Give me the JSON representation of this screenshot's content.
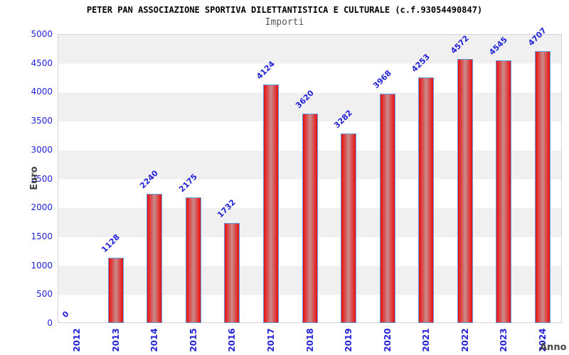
{
  "chart_data": {
    "type": "bar",
    "title": "PETER PAN ASSOCIAZIONE SPORTIVA DILETTANTISTICA E CULTURALE (c.f.93054490847)",
    "subtitle": "Importi",
    "xlabel": "Anno",
    "ylabel": "Euro",
    "categories": [
      "2012",
      "2013",
      "2014",
      "2015",
      "2016",
      "2017",
      "2018",
      "2019",
      "2020",
      "2021",
      "2022",
      "2023",
      "2024"
    ],
    "values": [
      0,
      1128,
      2240,
      2175,
      1732,
      4124,
      3620,
      3282,
      3968,
      4253,
      4572,
      4545,
      4707
    ],
    "ylim": [
      0,
      5000
    ],
    "ytick_step": 500,
    "yticks": [
      "0",
      "500",
      "1000",
      "1500",
      "2000",
      "2500",
      "3000",
      "3500",
      "4000",
      "4500",
      "5000"
    ],
    "legend": "none",
    "grid": "horizontal-bands-500",
    "value_labels_rotation_deg": -45,
    "xtick_rotation_deg": -90,
    "colors": {
      "bar_fill_edge": "#ea0f0f",
      "bar_fill_mid": "#c98c8c",
      "bar_border": "#5f9ee0",
      "axis_text_blue": "#2323d7",
      "band_gray": "#f0f0f0",
      "band_white": "#ffffff",
      "title_text": "#000000",
      "subtitle_text": "#555555",
      "axis_title_text": "#444444",
      "plot_border": "#d4d4d4"
    }
  }
}
